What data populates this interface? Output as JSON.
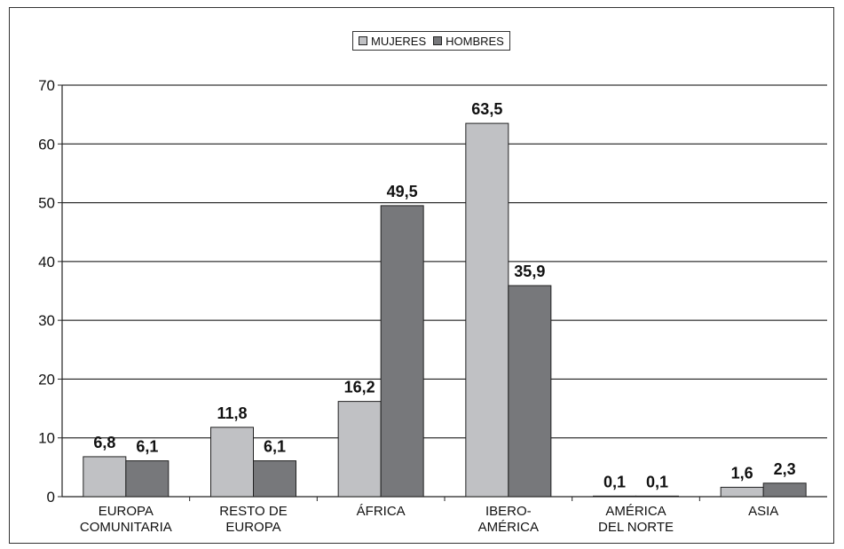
{
  "colors": {
    "mujeres": "#c0c1c4",
    "hombres": "#77787b",
    "axis": "#222222",
    "grid": "#000000"
  },
  "legend": {
    "mujeres_label": "MUJERES",
    "hombres_label": "HOMBRES"
  },
  "chart_data": {
    "type": "bar",
    "categories": [
      [
        "EUROPA",
        "COMUNITARIA"
      ],
      [
        "RESTO DE",
        "EUROPA"
      ],
      [
        "ÁFRICA"
      ],
      [
        "IBERO-",
        "AMÉRICA"
      ],
      [
        "AMÉRICA",
        "DEL NORTE"
      ],
      [
        "ASIA"
      ]
    ],
    "series": [
      {
        "name": "MUJERES",
        "values": [
          6.8,
          11.8,
          16.2,
          63.5,
          0.1,
          1.6
        ],
        "labels": [
          "6,8",
          "11,8",
          "16,2",
          "63,5",
          "0,1",
          "1,6"
        ]
      },
      {
        "name": "HOMBRES",
        "values": [
          6.1,
          6.1,
          49.5,
          35.9,
          0.1,
          2.3
        ],
        "labels": [
          "6,1",
          "6,1",
          "49,5",
          "35,9",
          "0,1",
          "2,3"
        ]
      }
    ],
    "yticks": [
      "0",
      "10",
      "20",
      "30",
      "40",
      "50",
      "60",
      "70"
    ],
    "ylim": [
      0,
      70
    ],
    "grid": true,
    "legend_position": "top-center"
  }
}
